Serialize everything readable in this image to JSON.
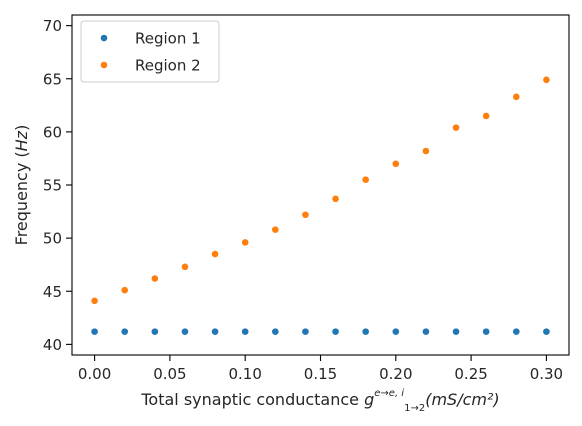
{
  "chart_data": {
    "type": "scatter",
    "title": "",
    "xlabel": {
      "prefix": "Total synaptic conductance ",
      "symbol": "g",
      "superscript": "e→e, i",
      "subscript": "1→2",
      "units": "(mS/cm²)"
    },
    "ylabel": "Frequency (Hz)",
    "xlim": [
      -0.015,
      0.315
    ],
    "ylim": [
      39,
      71
    ],
    "xticks": [
      0.0,
      0.05,
      0.1,
      0.15,
      0.2,
      0.25,
      0.3
    ],
    "xtick_labels": [
      "0.00",
      "0.05",
      "0.10",
      "0.15",
      "0.20",
      "0.25",
      "0.30"
    ],
    "yticks": [
      40,
      45,
      50,
      55,
      60,
      65,
      70
    ],
    "ytick_labels": [
      "40",
      "45",
      "50",
      "55",
      "60",
      "65",
      "70"
    ],
    "grid": false,
    "legend_position": "top-left",
    "x": [
      0.0,
      0.02,
      0.04,
      0.06,
      0.08,
      0.1,
      0.12,
      0.14,
      0.16,
      0.18,
      0.2,
      0.22,
      0.24,
      0.26,
      0.28,
      0.3
    ],
    "series": [
      {
        "name": "Region 1",
        "color": "#1f77b4",
        "values": [
          41.2,
          41.2,
          41.2,
          41.2,
          41.2,
          41.2,
          41.2,
          41.2,
          41.2,
          41.2,
          41.2,
          41.2,
          41.2,
          41.2,
          41.2,
          41.2
        ]
      },
      {
        "name": "Region 2",
        "color": "#ff7f0e",
        "values": [
          44.1,
          45.1,
          46.2,
          47.3,
          48.5,
          49.6,
          50.8,
          52.2,
          53.7,
          55.5,
          57.0,
          58.2,
          60.4,
          61.5,
          63.3,
          64.9
        ]
      }
    ]
  }
}
